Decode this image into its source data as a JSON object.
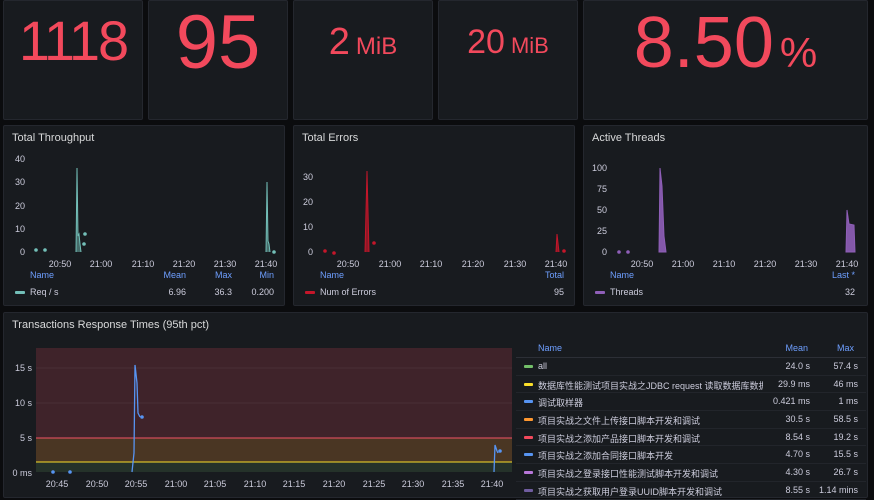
{
  "stats": [
    {
      "value": "1118",
      "unit": ""
    },
    {
      "value": "95",
      "unit": ""
    },
    {
      "value": "2",
      "unit": "MiB"
    },
    {
      "value": "20",
      "unit": "MiB"
    },
    {
      "value": "8.50",
      "unit": "%"
    }
  ],
  "colors": {
    "red": "#f2495c",
    "teal": "#73bfb8",
    "darkred": "#c4162a",
    "purple": "#8f5fb8",
    "blue": "#5794f2",
    "bg": "#181b1f"
  },
  "throughput": {
    "title": "Total Throughput",
    "legend_headers": {
      "name": "Name",
      "mean": "Mean",
      "max": "Max",
      "min": "Min"
    },
    "legend_row": {
      "name": "Req / s",
      "mean": "6.96",
      "max": "36.3",
      "min": "0.200"
    }
  },
  "errors": {
    "title": "Total Errors",
    "legend_headers": {
      "name": "Name",
      "total": "Total"
    },
    "legend_row": {
      "name": "Num of Errors",
      "total": "95"
    }
  },
  "threads": {
    "title": "Active Threads",
    "legend_headers": {
      "name": "Name",
      "last": "Last *"
    },
    "legend_row": {
      "name": "Threads",
      "last": "32"
    }
  },
  "response": {
    "title": "Transactions Response Times (95th pct)",
    "legend_headers": {
      "name": "Name",
      "mean": "Mean",
      "max": "Max"
    },
    "rows": [
      {
        "name": "all",
        "mean": "24.0 s",
        "max": "57.4 s",
        "color": "#73bf69"
      },
      {
        "name": "数据库性能测试项目实战之JDBC request 读取数据库数据",
        "mean": "29.9 ms",
        "max": "46 ms",
        "color": "#fade2a"
      },
      {
        "name": "调试取样器",
        "mean": "0.421 ms",
        "max": "1 ms",
        "color": "#5794f2"
      },
      {
        "name": "项目实战之文件上传接口脚本开发和调试",
        "mean": "30.5 s",
        "max": "58.5 s",
        "color": "#ff9830"
      },
      {
        "name": "项目实战之添加产品接口脚本开发和调试",
        "mean": "8.54 s",
        "max": "19.2 s",
        "color": "#f2495c"
      },
      {
        "name": "项目实战之添加合同接口脚本开发",
        "mean": "4.70 s",
        "max": "15.5 s",
        "color": "#5794f2"
      },
      {
        "name": "项目实战之登录接口性能测试脚本开发和调试",
        "mean": "4.30 s",
        "max": "26.7 s",
        "color": "#b877d9"
      },
      {
        "name": "项目实战之获取用户登录UUID脚本开发和调试",
        "mean": "8.55 s",
        "max": "1.14 mins",
        "color": "#705da0"
      }
    ]
  },
  "chart_data": [
    {
      "type": "line",
      "title": "Total Throughput",
      "x_ticks": [
        "20:50",
        "21:00",
        "21:10",
        "21:20",
        "21:30",
        "21:40"
      ],
      "y_ticks": [
        "0",
        "10",
        "20",
        "30",
        "40"
      ],
      "ylim": [
        0,
        40
      ],
      "series": [
        {
          "name": "Req / s",
          "points": [
            [
              "20:45",
              1
            ],
            [
              "20:47",
              1
            ],
            [
              "20:53",
              36
            ],
            [
              "20:53",
              9
            ],
            [
              "20:54",
              7
            ],
            [
              "20:55",
              4
            ],
            [
              "20:55",
              8
            ],
            [
              "21:41",
              31
            ],
            [
              "21:41",
              5
            ],
            [
              "21:43",
              0
            ]
          ]
        }
      ]
    },
    {
      "type": "line",
      "title": "Total Errors",
      "x_ticks": [
        "20:50",
        "21:00",
        "21:10",
        "21:20",
        "21:30",
        "21:40"
      ],
      "y_ticks": [
        "0",
        "10",
        "20",
        "30"
      ],
      "ylim": [
        0,
        33
      ],
      "series": [
        {
          "name": "Num of Errors",
          "points": [
            [
              "20:45",
              1
            ],
            [
              "20:47",
              0
            ],
            [
              "20:53",
              33
            ],
            [
              "20:54",
              3
            ],
            [
              "21:41",
              8
            ],
            [
              "21:43",
              1
            ]
          ]
        }
      ]
    },
    {
      "type": "area",
      "title": "Active Threads",
      "x_ticks": [
        "20:50",
        "21:00",
        "21:10",
        "21:20",
        "21:30",
        "21:40"
      ],
      "y_ticks": [
        "0",
        "25",
        "50",
        "75",
        "100"
      ],
      "ylim": [
        0,
        110
      ],
      "series": [
        {
          "name": "Threads",
          "points": [
            [
              "20:45",
              1
            ],
            [
              "20:47",
              1
            ],
            [
              "20:53",
              100
            ],
            [
              "20:54",
              10
            ],
            [
              "21:41",
              50
            ],
            [
              "21:42",
              32
            ]
          ]
        }
      ]
    },
    {
      "type": "line",
      "title": "Transactions Response Times (95th pct)",
      "x_ticks": [
        "20:45",
        "20:50",
        "20:55",
        "21:00",
        "21:05",
        "21:10",
        "21:15",
        "21:20",
        "21:25",
        "21:30",
        "21:35",
        "21:40"
      ],
      "y_ticks": [
        "0 ms",
        "5 s",
        "10 s",
        "15 s"
      ],
      "ylim": [
        0,
        18
      ],
      "thresholds": [
        5,
        1.5
      ],
      "series": [
        {
          "name": "项目实战之添加合同接口脚本开发",
          "points": [
            [
              "20:45",
              0
            ],
            [
              "20:47",
              0
            ],
            [
              "20:54",
              15.5
            ],
            [
              "20:55",
              8
            ],
            [
              "21:40",
              4
            ],
            [
              "21:41",
              3
            ]
          ]
        }
      ]
    }
  ]
}
